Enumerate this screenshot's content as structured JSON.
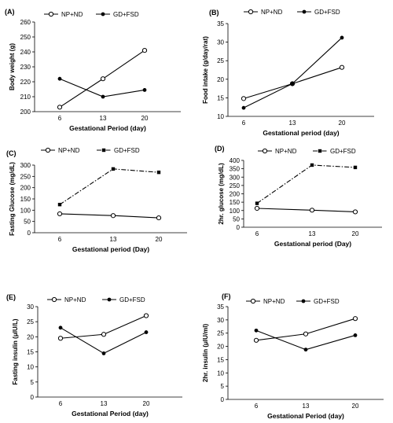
{
  "chart_data": [
    {
      "type": "line",
      "panel_label": "(A)",
      "xlabel": "Gestational Period (day)",
      "ylabel": "Body weight (g)",
      "categories": [
        "6",
        "13",
        "20"
      ],
      "ylim": [
        200,
        260
      ],
      "yticks": [
        200,
        210,
        220,
        230,
        240,
        250,
        260
      ],
      "legend": "top-left",
      "series": [
        {
          "name": "NP+ND",
          "marker": "open-circle",
          "dash": "solid",
          "values": [
            203,
            222,
            241
          ]
        },
        {
          "name": "GD+FSD",
          "marker": "filled-circle",
          "dash": "solid",
          "values": [
            222,
            210,
            214.5
          ]
        }
      ]
    },
    {
      "type": "line",
      "panel_label": "(B)",
      "xlabel": "Gestational period (day)",
      "ylabel": "Food intake (g/day/rat)",
      "categories": [
        "6",
        "13",
        "20"
      ],
      "ylim": [
        10,
        35
      ],
      "yticks": [
        10,
        15,
        20,
        25,
        30,
        35
      ],
      "legend": "top-left",
      "series": [
        {
          "name": "NP+ND",
          "marker": "open-circle",
          "dash": "solid",
          "values": [
            14.8,
            18.8,
            23.2
          ]
        },
        {
          "name": "GD+FSD",
          "marker": "filled-circle",
          "dash": "solid",
          "values": [
            12.3,
            18.8,
            31.2
          ]
        }
      ]
    },
    {
      "type": "line",
      "panel_label": "(C)",
      "xlabel": "Gestational  period (Day)",
      "ylabel": "Fasting Glucose (mg/dL)",
      "categories": [
        "6",
        "13",
        "20"
      ],
      "ylim": [
        0,
        300
      ],
      "yticks": [
        0,
        50,
        100,
        150,
        200,
        250,
        300
      ],
      "legend": "top-left",
      "series": [
        {
          "name": "NP+ND",
          "marker": "open-circle",
          "dash": "solid",
          "values": [
            84,
            76,
            66
          ]
        },
        {
          "name": "GD+FSD",
          "marker": "filled-square",
          "dash": "dashdot",
          "values": [
            125,
            283,
            268
          ]
        }
      ]
    },
    {
      "type": "line",
      "panel_label": "(D)",
      "xlabel": "Gestational  period (Day)",
      "ylabel": "2hr. glucose (mg/dL)",
      "categories": [
        "6",
        "13",
        "20"
      ],
      "ylim": [
        0,
        400
      ],
      "yticks": [
        0,
        50,
        100,
        150,
        200,
        250,
        300,
        350,
        400
      ],
      "legend": "top-left",
      "series": [
        {
          "name": "NP+ND",
          "marker": "open-circle",
          "dash": "solid",
          "values": [
            113,
            102,
            92
          ]
        },
        {
          "name": "GD+FSD",
          "marker": "filled-square",
          "dash": "dashdot",
          "values": [
            143,
            372,
            358
          ]
        }
      ]
    },
    {
      "type": "line",
      "panel_label": "(E)",
      "xlabel": "Gestational Period (day)",
      "ylabel": "Fasting insulin (μIU/L)",
      "categories": [
        "6",
        "13",
        "20"
      ],
      "ylim": [
        0,
        30
      ],
      "yticks": [
        0,
        5,
        10,
        15,
        20,
        25,
        30
      ],
      "legend": "top-left",
      "series": [
        {
          "name": "NP+ND",
          "marker": "open-circle",
          "dash": "solid",
          "values": [
            19.5,
            20.8,
            27
          ]
        },
        {
          "name": "GD+FSD",
          "marker": "filled-circle",
          "dash": "solid",
          "values": [
            23,
            14.5,
            21.5
          ]
        }
      ]
    },
    {
      "type": "line",
      "panel_label": "(F)",
      "xlabel": "Gestational Period (day)",
      "ylabel": "2hr. insulin (μIU/ml)",
      "categories": [
        "6",
        "13",
        "20"
      ],
      "ylim": [
        0,
        35
      ],
      "yticks": [
        0,
        5,
        10,
        15,
        20,
        25,
        30,
        35
      ],
      "legend": "top-left",
      "series": [
        {
          "name": "NP+ND",
          "marker": "open-circle",
          "dash": "solid",
          "values": [
            22.3,
            24.7,
            30.5
          ]
        },
        {
          "name": "GD+FSD",
          "marker": "filled-circle",
          "dash": "solid",
          "values": [
            26,
            18.8,
            24.2
          ]
        }
      ]
    }
  ]
}
